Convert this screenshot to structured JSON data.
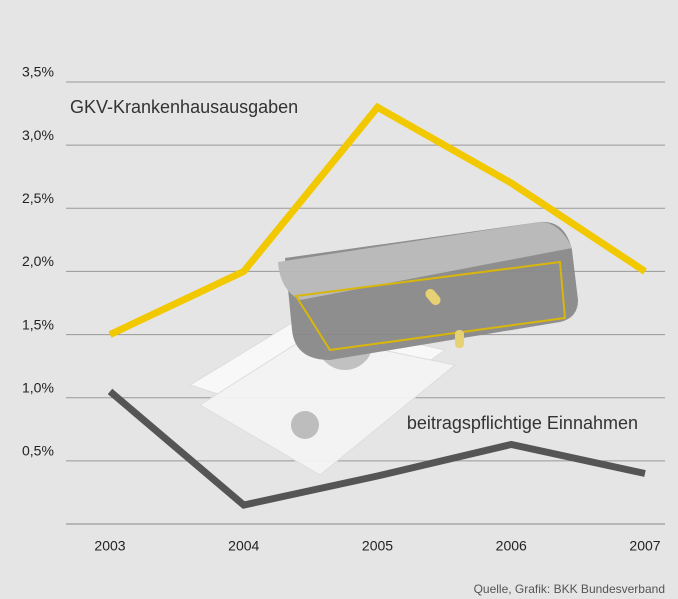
{
  "chart_data": {
    "type": "line",
    "categories": [
      "2003",
      "2004",
      "2005",
      "2006",
      "2007"
    ],
    "series": [
      {
        "name": "GKV-Krankenhausausgaben",
        "color": "#f2c800",
        "values": [
          1.5,
          2.0,
          3.3,
          2.7,
          2.0
        ]
      },
      {
        "name": "beitragspflichtige Einnahmen",
        "color": "#555555",
        "values": [
          1.05,
          0.15,
          0.38,
          0.63,
          0.4
        ]
      }
    ],
    "ylim": [
      0,
      3.5
    ],
    "yticks": [
      {
        "value": 0.5,
        "label": "0,5%"
      },
      {
        "value": 1.0,
        "label": "1,0%"
      },
      {
        "value": 1.5,
        "label": "1,5%"
      },
      {
        "value": 2.0,
        "label": "2,0%"
      },
      {
        "value": 2.5,
        "label": "2,5%"
      },
      {
        "value": 3.0,
        "label": "3,0%"
      },
      {
        "value": 3.5,
        "label": "3,5%"
      }
    ],
    "grid": true,
    "source": "Quelle, Grafik: BKK Bundesverband"
  }
}
